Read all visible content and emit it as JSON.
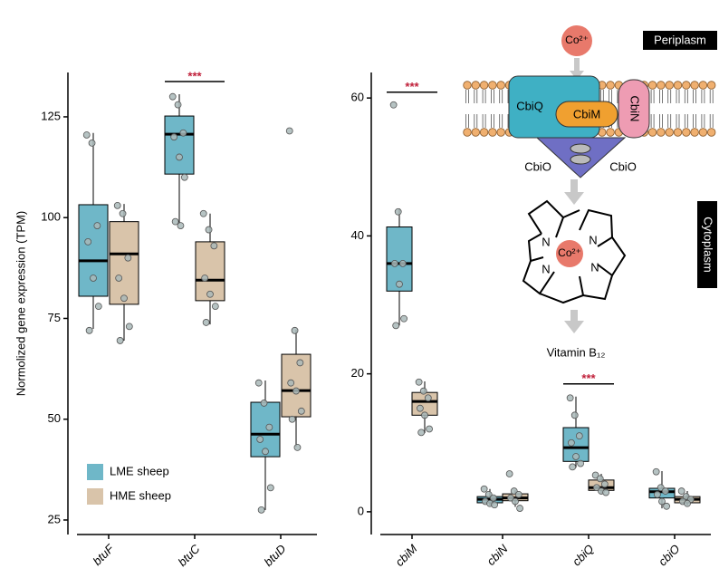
{
  "chart_data": [
    {
      "type": "box",
      "ylabel": "Normolized gene expression (TPM)",
      "categories": [
        "btuF",
        "btuC",
        "btuD"
      ],
      "ylim": [
        21.4,
        136
      ],
      "yticks": [
        25,
        50,
        75,
        100,
        125
      ],
      "legend": "lower left",
      "series": [
        {
          "name": "LME sheep",
          "color": "#6fb7c8",
          "q1": [
            80.5,
            110.8,
            40.7
          ],
          "median": [
            89.3,
            120.7,
            46.3
          ],
          "q3": [
            103.2,
            125.2,
            54.2
          ],
          "whislo": [
            72.4,
            98.7,
            27.5
          ],
          "whishi": [
            121,
            130.6,
            59.6
          ],
          "points": [
            [
              120.5,
              118.5,
              98,
              94,
              85,
              78,
              72
            ],
            [
              130,
              128,
              121,
              120,
              115,
              110,
              99,
              98
            ],
            [
              59,
              54,
              48,
              45,
              42,
              33,
              27.5
            ]
          ]
        },
        {
          "name": "HME sheep",
          "color": "#d9c4aa",
          "q1": [
            78.5,
            79.4,
            50.6
          ],
          "median": [
            91,
            84.5,
            57.1
          ],
          "q3": [
            99,
            94,
            66.1
          ],
          "whislo": [
            69.5,
            73.5,
            43.2
          ],
          "whishi": [
            103.4,
            101,
            72.2
          ],
          "points": [
            [
              103,
              101,
              90,
              85,
              80,
              73,
              69.5
            ],
            [
              101,
              97,
              93,
              85,
              81,
              78,
              74
            ],
            [
              121.5,
              72,
              64,
              59,
              57,
              52,
              50,
              43
            ]
          ]
        }
      ],
      "annotations": [
        {
          "text": "***",
          "category": "btuC"
        }
      ]
    },
    {
      "type": "box",
      "categories": [
        "cbiM",
        "cbiN",
        "cbiQ",
        "cbiO"
      ],
      "ylim": [
        -3.3,
        63.7
      ],
      "yticks": [
        0,
        20,
        40,
        60
      ],
      "series": [
        {
          "color": "#6fb7c8",
          "q1": [
            32,
            1.3,
            7.3,
            2
          ],
          "median": [
            36,
            1.8,
            9.3,
            2.9
          ],
          "q3": [
            41.3,
            2.2,
            12.2,
            3.4
          ],
          "whislo": [
            27,
            0.9,
            6.4,
            0.5
          ],
          "whishi": [
            44,
            3.3,
            16.7,
            5.9
          ],
          "points": [
            [
              59,
              43.5,
              36,
              36,
              33,
              28,
              27
            ],
            [
              3.3,
              2.5,
              2,
              1.5,
              1.2,
              1
            ],
            [
              16.5,
              14,
              11,
              10,
              8,
              7,
              6.5
            ],
            [
              5.8,
              3.5,
              3,
              2.5,
              1.5,
              0.8
            ]
          ]
        },
        {
          "color": "#d9c4aa",
          "q1": [
            14,
            1.6,
            3.1,
            1.3
          ],
          "median": [
            16,
            2,
            3.5,
            1.8
          ],
          "q3": [
            17.3,
            2.6,
            4.6,
            2.2
          ],
          "whislo": [
            11.4,
            0.7,
            2.6,
            0.9
          ],
          "whishi": [
            18.9,
            3.1,
            5.5,
            3
          ],
          "points": [
            [
              18.8,
              17.5,
              16.5,
              15,
              14,
              12,
              11.5
            ],
            [
              5.5,
              3,
              2.5,
              2,
              1.5,
              0.5
            ],
            [
              5.3,
              4.8,
              4,
              3.5,
              3,
              2.8
            ],
            [
              3,
              2.2,
              1.8,
              1.5,
              1.2
            ]
          ]
        }
      ],
      "annotations": [
        {
          "text": "***",
          "category": "cbiM"
        },
        {
          "text": "***",
          "category": "cbiQ"
        }
      ]
    }
  ],
  "diagram": {
    "ion": "Co²⁺",
    "periplasm": "Periplasm",
    "cytoplasm": "Cytoplasm",
    "proteins": [
      "CbiQ",
      "CbiM",
      "CbiN",
      "CbiO",
      "CbiO"
    ],
    "nitrogen": [
      "N",
      "N",
      "N",
      "N"
    ],
    "product": "Vitamin B₁₂"
  }
}
